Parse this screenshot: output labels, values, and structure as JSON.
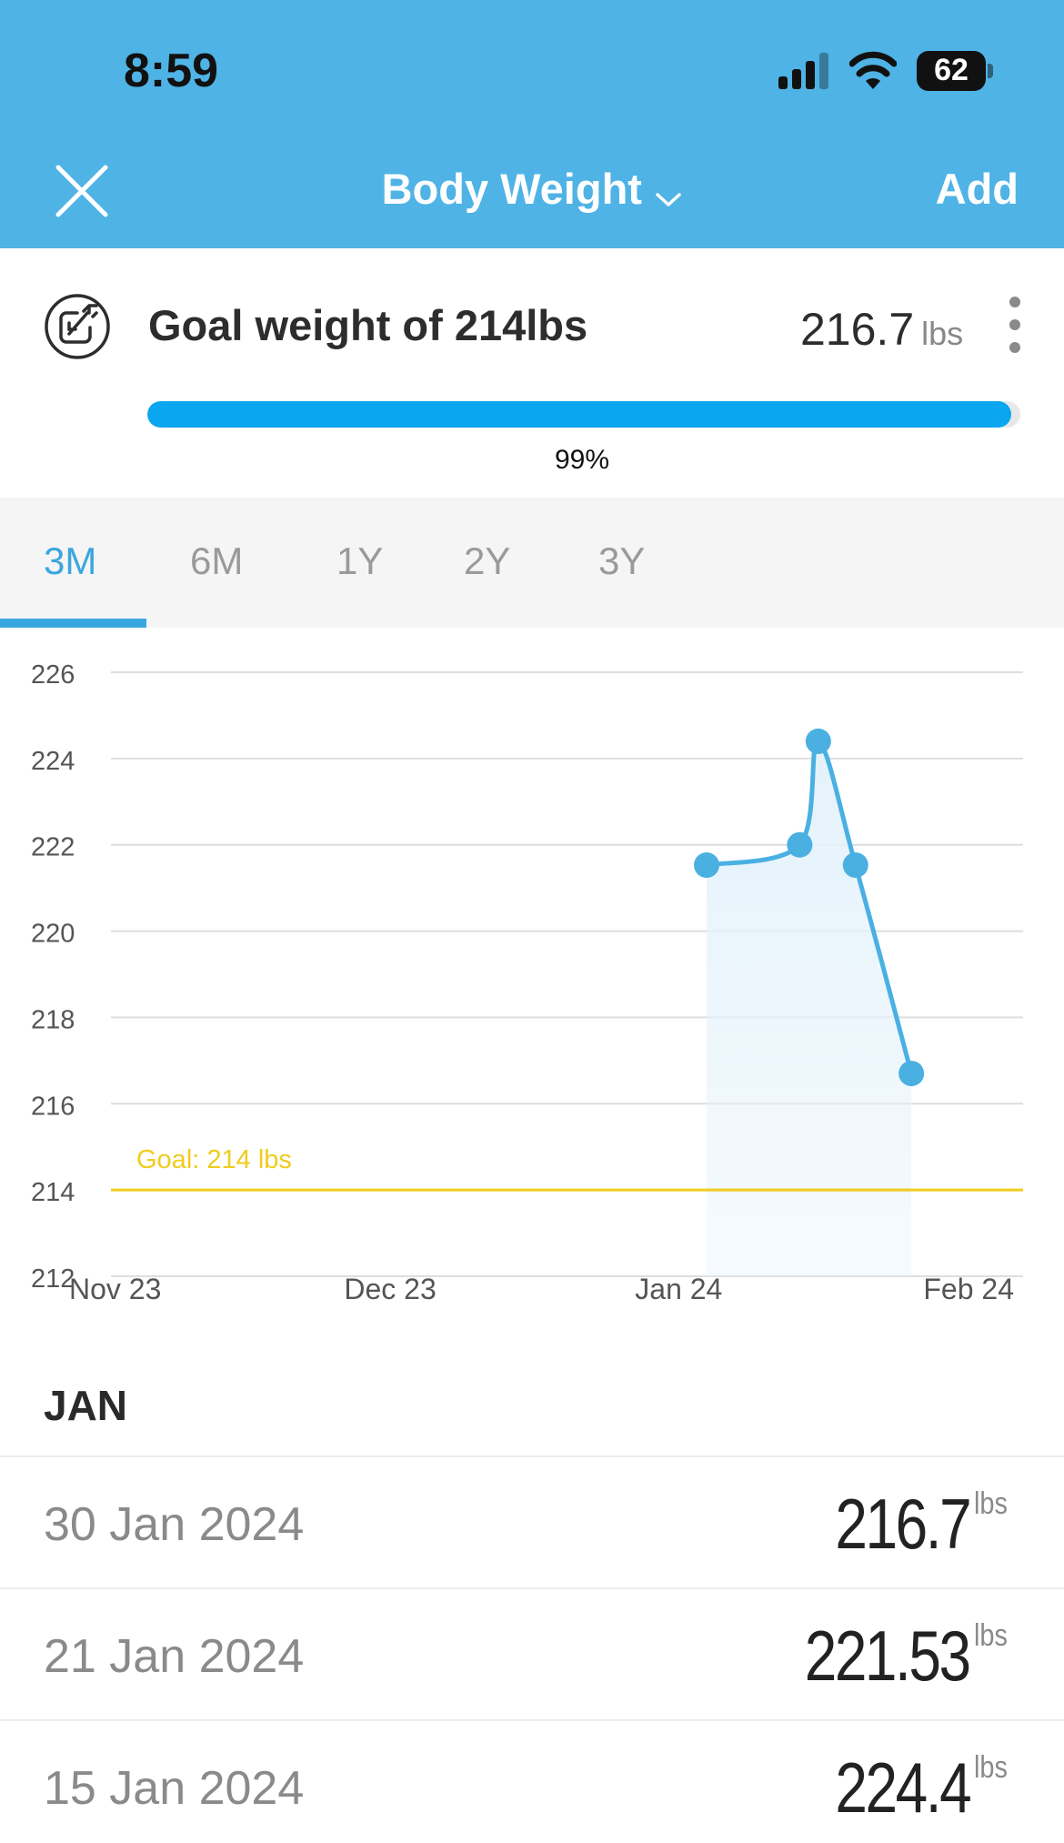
{
  "status_bar": {
    "time": "8:59",
    "battery": "62"
  },
  "header": {
    "title": "Body Weight",
    "add_label": "Add"
  },
  "goal": {
    "text": "Goal weight of 214lbs",
    "current_value": "216.7",
    "current_unit": "lbs",
    "progress_percent": 99,
    "progress_label": "99%"
  },
  "tabs": [
    {
      "label": "3M",
      "active": true
    },
    {
      "label": "6M",
      "active": false
    },
    {
      "label": "1Y",
      "active": false
    },
    {
      "label": "2Y",
      "active": false
    },
    {
      "label": "3Y",
      "active": false
    }
  ],
  "chart_data": {
    "type": "area",
    "title": "",
    "xlabel": "",
    "ylabel": "",
    "ylim": [
      212,
      226
    ],
    "yticks": [
      226,
      224,
      222,
      220,
      218,
      216,
      214,
      212
    ],
    "xtick_labels": [
      "Nov 23",
      "Dec 23",
      "Jan 24",
      "Feb 24"
    ],
    "x_range_days": [
      0,
      98
    ],
    "xtick_days": [
      0,
      30,
      61,
      92
    ],
    "goal_value": 214,
    "goal_label": "Goal: 214 lbs",
    "series": [
      {
        "name": "Body Weight",
        "points": [
          {
            "day": 64,
            "value": 221.53
          },
          {
            "day": 74,
            "value": 222.0
          },
          {
            "day": 76,
            "value": 224.4
          },
          {
            "day": 80,
            "value": 221.53
          },
          {
            "day": 86,
            "value": 216.7
          }
        ]
      }
    ],
    "colors": {
      "line": "#4ab0e2",
      "fill": "#e4f2fb",
      "goal": "#f0cc1e",
      "grid": "#dedede",
      "tick": "#555555"
    }
  },
  "list": {
    "month": "JAN",
    "entries": [
      {
        "date": "30 Jan 2024",
        "value": "216.7",
        "unit": "lbs"
      },
      {
        "date": "21 Jan 2024",
        "value": "221.53",
        "unit": "lbs"
      },
      {
        "date": "15 Jan 2024",
        "value": "224.4",
        "unit": "lbs"
      }
    ]
  }
}
